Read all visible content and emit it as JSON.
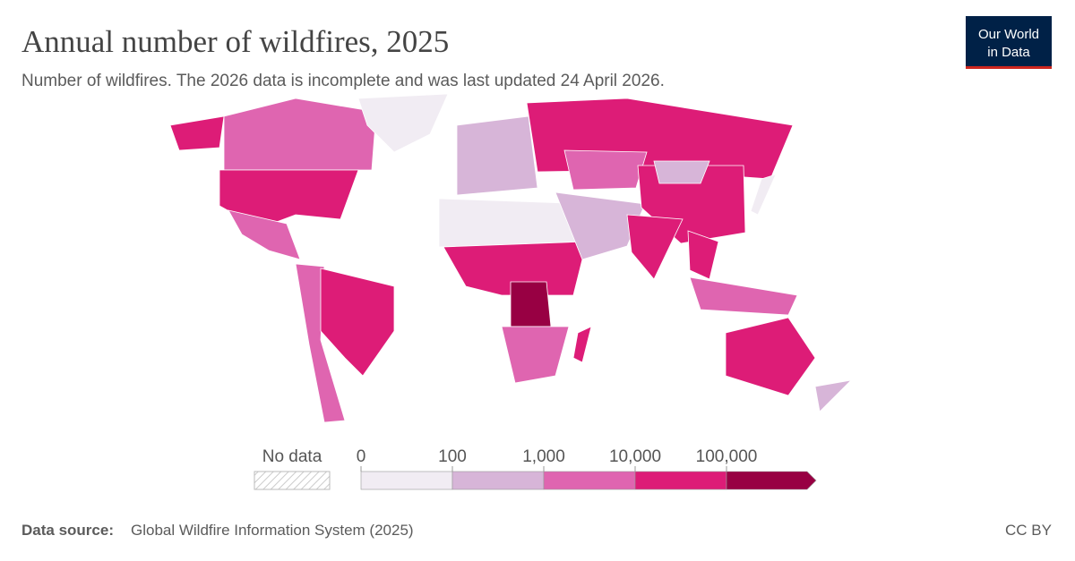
{
  "header": {
    "title": "Annual number of wildfires, 2025",
    "subtitle": "Number of wildfires. The 2026 data is incomplete and was last updated 24 April 2026.",
    "logo": [
      "Our World",
      "in Data"
    ]
  },
  "legend": {
    "no_data": "No data",
    "ticks": [
      0,
      100,
      {
        "value": 1000,
        "label": "1,000"
      },
      {
        "value": 10000,
        "label": "10,000"
      },
      {
        "value": 100000,
        "label": "100,000"
      }
    ],
    "colors": [
      "#f1ecf3",
      "#d7b5d8",
      "#df65b0",
      "#dd1c77",
      "#980043"
    ]
  },
  "footer": {
    "source_label": "Data source:",
    "source": "Global Wildfire Information System (2025)",
    "license": "CC BY"
  }
}
